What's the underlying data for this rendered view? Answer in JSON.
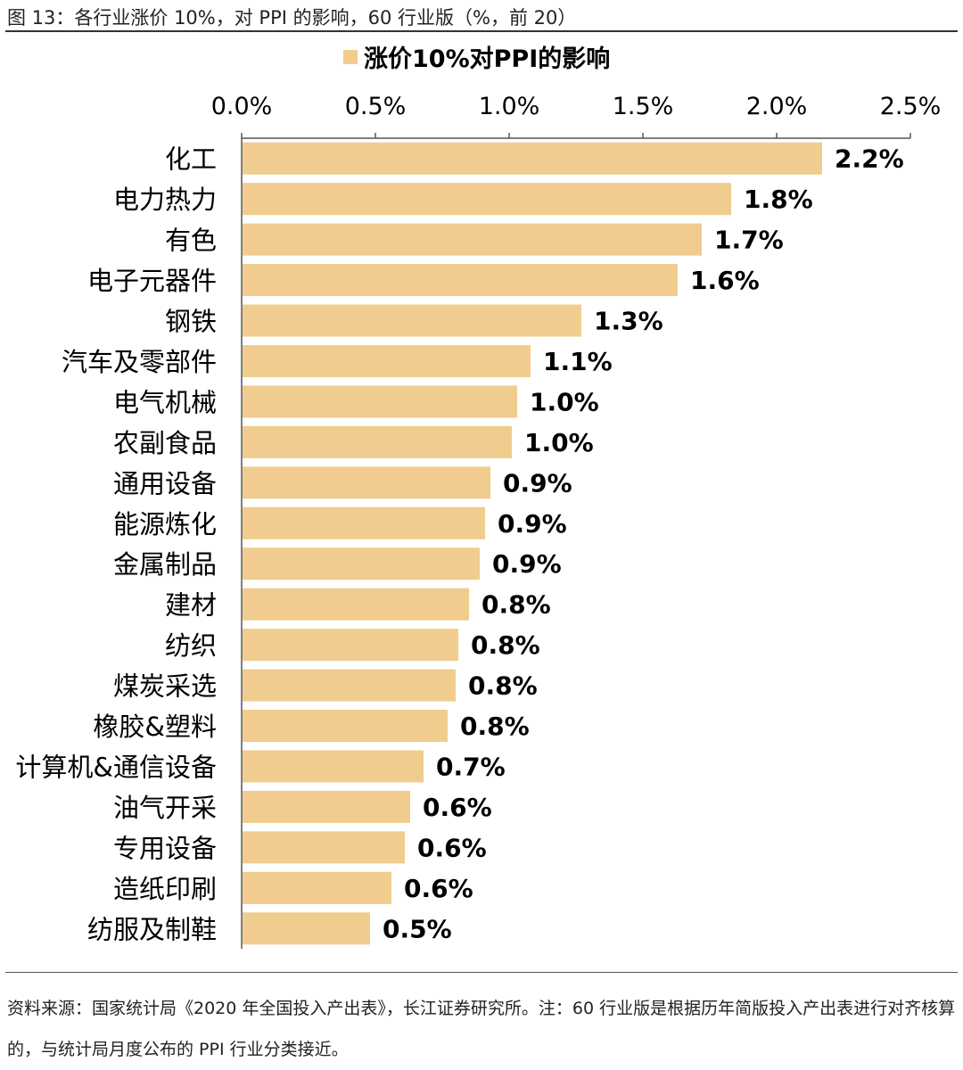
{
  "figure_title": "图 13：各行业涨价 10%，对 PPI 的影响，60 行业版（%，前 20）",
  "source_note": "资料来源：国家统计局《2020 年全国投入产出表》，长江证券研究所。注：60 行业版是根据历年简版投入产出表进行对齐核算的，与统计局月度公布的 PPI 行业分类接近。",
  "colors": {
    "bar": "#F0CC8E",
    "axis": "#555555",
    "text": "#000000"
  },
  "chart_data": {
    "type": "bar",
    "orientation": "horizontal",
    "legend": {
      "position": "top",
      "entries": [
        "涨价10%对PPI的影响"
      ]
    },
    "xlim": [
      0,
      2.5
    ],
    "x_ticks": [
      "0.0%",
      "0.5%",
      "1.0%",
      "1.5%",
      "2.0%",
      "2.5%"
    ],
    "x_tick_values": [
      0,
      0.5,
      1.0,
      1.5,
      2.0,
      2.5
    ],
    "categories": [
      "化工",
      "电力热力",
      "有色",
      "电子元器件",
      "钢铁",
      "汽车及零部件",
      "电气机械",
      "农副食品",
      "通用设备",
      "能源炼化",
      "金属制品",
      "建材",
      "纺织",
      "煤炭采选",
      "橡胶&塑料",
      "计算机&通信设备",
      "油气开采",
      "专用设备",
      "造纸印刷",
      "纺服及制鞋"
    ],
    "values": [
      2.17,
      1.83,
      1.72,
      1.63,
      1.27,
      1.08,
      1.03,
      1.01,
      0.93,
      0.91,
      0.89,
      0.85,
      0.81,
      0.8,
      0.77,
      0.68,
      0.63,
      0.61,
      0.56,
      0.48
    ],
    "data_labels": [
      "2.2%",
      "1.8%",
      "1.7%",
      "1.6%",
      "1.3%",
      "1.1%",
      "1.0%",
      "1.0%",
      "0.9%",
      "0.9%",
      "0.9%",
      "0.8%",
      "0.8%",
      "0.8%",
      "0.8%",
      "0.7%",
      "0.6%",
      "0.6%",
      "0.6%",
      "0.5%"
    ],
    "grid": false
  }
}
